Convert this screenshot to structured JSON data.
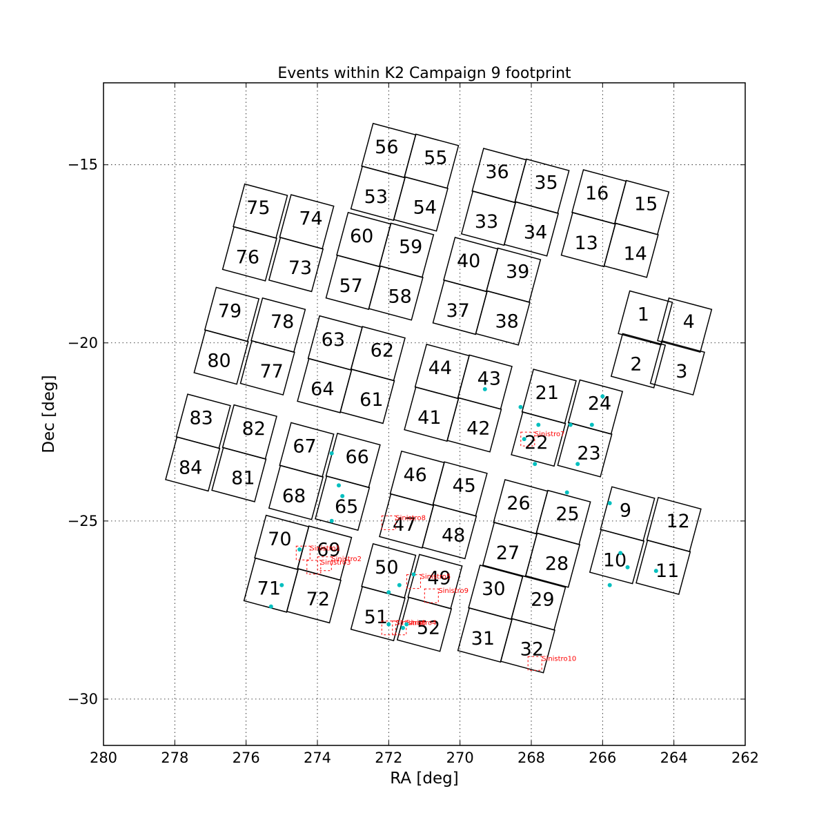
{
  "chart_data": {
    "type": "scatter",
    "title": "Events within K2 Campaign 9 footprint",
    "xlabel": "RA [deg]",
    "ylabel": "Dec [deg]",
    "xlim": [
      280,
      262
    ],
    "ylim": [
      -31.3,
      -12.7
    ],
    "x_ticks": [
      280,
      278,
      276,
      274,
      272,
      270,
      268,
      266,
      264,
      262
    ],
    "x_tick_labels": [
      "280",
      "278",
      "276",
      "274",
      "272",
      "270",
      "268",
      "266",
      "264",
      "262"
    ],
    "y_ticks": [
      -15,
      -20,
      -25,
      -30
    ],
    "y_tick_labels": [
      "−15",
      "−20",
      "−25",
      "−30"
    ],
    "grid": true,
    "ccd_color": "#000000",
    "telescope_color": "#ff0000",
    "event_color": "#00bfbf",
    "ccd_modules": [
      {
        "label": "56",
        "x": 272.0,
        "y": -14.6,
        "orient": "TL"
      },
      {
        "label": "55",
        "x": 270.8,
        "y": -14.9,
        "orient": "TR"
      },
      {
        "label": "53",
        "x": 272.3,
        "y": -15.8,
        "orient": "BL"
      },
      {
        "label": "54",
        "x": 271.1,
        "y": -16.1,
        "orient": "BR"
      },
      {
        "label": "36",
        "x": 268.9,
        "y": -15.3,
        "orient": "TL"
      },
      {
        "label": "35",
        "x": 267.7,
        "y": -15.6,
        "orient": "TR"
      },
      {
        "label": "33",
        "x": 269.2,
        "y": -16.5,
        "orient": "BL"
      },
      {
        "label": "34",
        "x": 268.0,
        "y": -16.8,
        "orient": "BR"
      },
      {
        "label": "16",
        "x": 266.1,
        "y": -15.9,
        "orient": "TL"
      },
      {
        "label": "15",
        "x": 264.9,
        "y": -16.2,
        "orient": "TR"
      },
      {
        "label": "13",
        "x": 266.4,
        "y": -17.1,
        "orient": "BL"
      },
      {
        "label": "14",
        "x": 265.2,
        "y": -17.4,
        "orient": "BR"
      },
      {
        "label": "75",
        "x": 275.6,
        "y": -16.3,
        "orient": "TL"
      },
      {
        "label": "74",
        "x": 274.3,
        "y": -16.6,
        "orient": "TR"
      },
      {
        "label": "76",
        "x": 275.9,
        "y": -17.5,
        "orient": "BL"
      },
      {
        "label": "73",
        "x": 274.6,
        "y": -17.8,
        "orient": "BR"
      },
      {
        "label": "60",
        "x": 272.7,
        "y": -17.1,
        "orient": "TL"
      },
      {
        "label": "59",
        "x": 271.5,
        "y": -17.4,
        "orient": "TR"
      },
      {
        "label": "57",
        "x": 273.0,
        "y": -18.3,
        "orient": "BL"
      },
      {
        "label": "58",
        "x": 271.8,
        "y": -18.6,
        "orient": "BR"
      },
      {
        "label": "40",
        "x": 269.7,
        "y": -17.8,
        "orient": "TL"
      },
      {
        "label": "39",
        "x": 268.5,
        "y": -18.1,
        "orient": "TR"
      },
      {
        "label": "37",
        "x": 270.0,
        "y": -19.0,
        "orient": "BL"
      },
      {
        "label": "38",
        "x": 268.8,
        "y": -19.3,
        "orient": "BR"
      },
      {
        "label": "1",
        "x": 264.8,
        "y": -19.3,
        "orient": "TL"
      },
      {
        "label": "4",
        "x": 263.7,
        "y": -19.5,
        "orient": "TR"
      },
      {
        "label": "2",
        "x": 265.0,
        "y": -20.5,
        "orient": "BL"
      },
      {
        "label": "3",
        "x": 263.9,
        "y": -20.7,
        "orient": "BR"
      },
      {
        "label": "79",
        "x": 276.4,
        "y": -19.2,
        "orient": "TL"
      },
      {
        "label": "78",
        "x": 275.1,
        "y": -19.5,
        "orient": "TR"
      },
      {
        "label": "80",
        "x": 276.7,
        "y": -20.4,
        "orient": "BL"
      },
      {
        "label": "77",
        "x": 275.4,
        "y": -20.7,
        "orient": "BR"
      },
      {
        "label": "63",
        "x": 273.5,
        "y": -20.0,
        "orient": "TL"
      },
      {
        "label": "62",
        "x": 272.3,
        "y": -20.3,
        "orient": "TR"
      },
      {
        "label": "64",
        "x": 273.8,
        "y": -21.2,
        "orient": "BL"
      },
      {
        "label": "61",
        "x": 272.6,
        "y": -21.5,
        "orient": "BR"
      },
      {
        "label": "44",
        "x": 270.5,
        "y": -20.8,
        "orient": "TL"
      },
      {
        "label": "43",
        "x": 269.3,
        "y": -21.1,
        "orient": "TR"
      },
      {
        "label": "41",
        "x": 270.8,
        "y": -22.0,
        "orient": "BL"
      },
      {
        "label": "42",
        "x": 269.6,
        "y": -22.3,
        "orient": "BR"
      },
      {
        "label": "21",
        "x": 267.5,
        "y": -21.5,
        "orient": "TL"
      },
      {
        "label": "24",
        "x": 266.2,
        "y": -21.8,
        "orient": "TR"
      },
      {
        "label": "22",
        "x": 267.8,
        "y": -22.7,
        "orient": "BL"
      },
      {
        "label": "23",
        "x": 266.5,
        "y": -23.0,
        "orient": "BR"
      },
      {
        "label": "83",
        "x": 277.2,
        "y": -22.2,
        "orient": "TL"
      },
      {
        "label": "82",
        "x": 275.9,
        "y": -22.5,
        "orient": "TR"
      },
      {
        "label": "84",
        "x": 277.5,
        "y": -23.4,
        "orient": "BL"
      },
      {
        "label": "81",
        "x": 276.2,
        "y": -23.7,
        "orient": "BR"
      },
      {
        "label": "67",
        "x": 274.3,
        "y": -23.0,
        "orient": "TL"
      },
      {
        "label": "66",
        "x": 273.0,
        "y": -23.3,
        "orient": "TR"
      },
      {
        "label": "68",
        "x": 274.6,
        "y": -24.2,
        "orient": "BL"
      },
      {
        "label": "65",
        "x": 273.3,
        "y": -24.5,
        "orient": "BR"
      },
      {
        "label": "46",
        "x": 271.2,
        "y": -23.8,
        "orient": "TL"
      },
      {
        "label": "45",
        "x": 270.0,
        "y": -24.1,
        "orient": "TR"
      },
      {
        "label": "47",
        "x": 271.5,
        "y": -25.0,
        "orient": "BL"
      },
      {
        "label": "48",
        "x": 270.3,
        "y": -25.3,
        "orient": "BR"
      },
      {
        "label": "26",
        "x": 268.3,
        "y": -24.6,
        "orient": "TL"
      },
      {
        "label": "25",
        "x": 267.1,
        "y": -24.9,
        "orient": "TR"
      },
      {
        "label": "27",
        "x": 268.6,
        "y": -25.8,
        "orient": "BL"
      },
      {
        "label": "28",
        "x": 267.4,
        "y": -26.1,
        "orient": "BR"
      },
      {
        "label": "9",
        "x": 265.3,
        "y": -24.8,
        "orient": "TL"
      },
      {
        "label": "12",
        "x": 264.0,
        "y": -25.1,
        "orient": "TR"
      },
      {
        "label": "10",
        "x": 265.6,
        "y": -26.0,
        "orient": "BL"
      },
      {
        "label": "11",
        "x": 264.3,
        "y": -26.3,
        "orient": "BR"
      },
      {
        "label": "70",
        "x": 275.0,
        "y": -25.6,
        "orient": "TL"
      },
      {
        "label": "69",
        "x": 273.8,
        "y": -25.9,
        "orient": "TR"
      },
      {
        "label": "71",
        "x": 275.3,
        "y": -26.8,
        "orient": "BL"
      },
      {
        "label": "72",
        "x": 274.1,
        "y": -27.1,
        "orient": "BR"
      },
      {
        "label": "50",
        "x": 272.0,
        "y": -26.4,
        "orient": "TL"
      },
      {
        "label": "49",
        "x": 270.7,
        "y": -26.7,
        "orient": "TR"
      },
      {
        "label": "51",
        "x": 272.3,
        "y": -27.6,
        "orient": "BL"
      },
      {
        "label": "52",
        "x": 271.0,
        "y": -27.9,
        "orient": "BR"
      },
      {
        "label": "30",
        "x": 269.0,
        "y": -27.0,
        "orient": "TL"
      },
      {
        "label": "29",
        "x": 267.8,
        "y": -27.3,
        "orient": "TR"
      },
      {
        "label": "31",
        "x": 269.3,
        "y": -28.2,
        "orient": "BL"
      },
      {
        "label": "32",
        "x": 268.1,
        "y": -28.5,
        "orient": "BR"
      }
    ],
    "telescope_fields": [
      {
        "label": "Sinistro1",
        "ra": 274.4,
        "dec": -25.9
      },
      {
        "label": "Sinistro2",
        "ra": 273.8,
        "dec": -26.2
      },
      {
        "label": "Sinistro3",
        "ra": 274.1,
        "dec": -26.3
      },
      {
        "label": "Sinistro4",
        "ra": 271.7,
        "dec": -28.0
      },
      {
        "label": "Sinistro5",
        "ra": 271.3,
        "dec": -26.7
      },
      {
        "label": "Sinistro6",
        "ra": 272.0,
        "dec": -28.0
      },
      {
        "label": "Sinistro7",
        "ra": 268.1,
        "dec": -22.7
      },
      {
        "label": "Sinistro8",
        "ra": 272.0,
        "dec": -25.05
      },
      {
        "label": "Sinistro9",
        "ra": 270.8,
        "dec": -27.1
      },
      {
        "label": "Sinistro10",
        "ra": 267.9,
        "dec": -29.0
      }
    ],
    "events": {
      "ra": [
        269.3,
        268.3,
        267.8,
        268.2,
        267.9,
        266.9,
        266.3,
        266.0,
        266.7,
        273.6,
        273.4,
        273.3,
        273.6,
        267.0,
        265.8,
        265.5,
        265.3,
        264.5,
        265.8,
        274.5,
        275.0,
        275.3,
        272.0,
        271.7,
        271.3,
        271.5,
        272.0,
        271.6
      ],
      "dec": [
        -21.3,
        -21.8,
        -22.3,
        -22.7,
        -23.4,
        -22.3,
        -22.3,
        -21.5,
        -23.4,
        -23.1,
        -24.0,
        -24.3,
        -25.0,
        -24.2,
        -24.5,
        -25.9,
        -26.3,
        -26.4,
        -26.8,
        -25.8,
        -26.8,
        -27.4,
        -27.0,
        -26.8,
        -26.5,
        -27.9,
        -27.9,
        -28.0
      ]
    }
  }
}
